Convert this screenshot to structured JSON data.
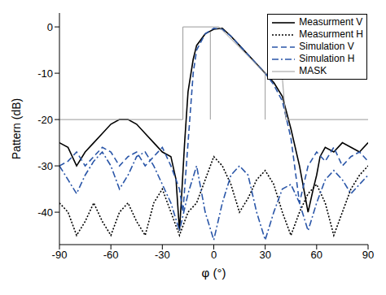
{
  "chart_data": {
    "type": "line",
    "x_label": "φ (°)",
    "y_label": "Pattern (dB)",
    "xlim": [
      -90,
      90
    ],
    "xticks": [
      -90,
      -60,
      -30,
      0,
      30,
      60,
      90
    ],
    "ylim": [
      -47,
      3
    ],
    "yticks": [
      -40,
      -30,
      -20,
      -10,
      0
    ],
    "legend": "upper right",
    "series": [
      {
        "name": "Measurment V",
        "color": "#000000",
        "line_style": "solid",
        "x": [
          -90,
          -85,
          -80,
          -75,
          -70,
          -65,
          -60,
          -55,
          -50,
          -45,
          -40,
          -35,
          -30,
          -25,
          -22,
          -20,
          -19,
          -17,
          -15,
          -12,
          -10,
          -5,
          0,
          5,
          10,
          15,
          20,
          25,
          30,
          35,
          40,
          45,
          50,
          55,
          58,
          60,
          62,
          65,
          70,
          75,
          80,
          85,
          90
        ],
        "values": [
          -25,
          -26,
          -30,
          -27,
          -25,
          -23,
          -21,
          -20,
          -20,
          -21,
          -23,
          -25,
          -27,
          -28,
          -33,
          -44,
          -38,
          -25,
          -14,
          -7,
          -4,
          -1.5,
          -0.5,
          -0.3,
          -2,
          -4,
          -6,
          -8,
          -10,
          -12,
          -15,
          -22,
          -30,
          -40,
          -35,
          -32,
          -28,
          -26,
          -27,
          -25,
          -26,
          -27,
          -25
        ]
      },
      {
        "name": "Measurment H",
        "color": "#000000",
        "line_style": "dotted",
        "x": [
          -90,
          -85,
          -80,
          -75,
          -70,
          -65,
          -60,
          -55,
          -50,
          -45,
          -40,
          -35,
          -30,
          -25,
          -20,
          -15,
          -10,
          -5,
          0,
          5,
          10,
          15,
          20,
          25,
          30,
          35,
          40,
          45,
          50,
          55,
          60,
          65,
          70,
          75,
          80,
          85,
          90
        ],
        "values": [
          -38,
          -40,
          -45,
          -42,
          -38,
          -42,
          -45,
          -40,
          -38,
          -42,
          -45,
          -38,
          -35,
          -40,
          -45,
          -40,
          -38,
          -33,
          -28,
          -30,
          -34,
          -40,
          -37,
          -33,
          -31,
          -34,
          -40,
          -45,
          -40,
          -36,
          -34,
          -38,
          -45,
          -40,
          -35,
          -32,
          -30
        ]
      },
      {
        "name": "Simulation V",
        "color": "#2a56a8",
        "line_style": "dashed",
        "x": [
          -90,
          -85,
          -80,
          -75,
          -70,
          -65,
          -60,
          -55,
          -50,
          -45,
          -40,
          -35,
          -30,
          -25,
          -20,
          -18,
          -15,
          -12,
          -10,
          -5,
          0,
          5,
          10,
          15,
          20,
          25,
          30,
          35,
          40,
          45,
          50,
          55,
          60,
          65,
          70,
          75,
          80,
          85,
          90
        ],
        "values": [
          -30,
          -29,
          -27,
          -30,
          -28,
          -26,
          -27,
          -30,
          -28,
          -27,
          -30,
          -28,
          -26,
          -30,
          -35,
          -40,
          -25,
          -10,
          -5,
          -1.5,
          -0.3,
          -0.5,
          -2,
          -4,
          -6,
          -8,
          -10,
          -12.5,
          -16,
          -24,
          -38,
          -30,
          -27,
          -29,
          -26,
          -30,
          -28,
          -27,
          -29
        ]
      },
      {
        "name": "Simulation H",
        "color": "#2a56a8",
        "line_style": "dashdot",
        "x": [
          -90,
          -85,
          -80,
          -75,
          -70,
          -65,
          -60,
          -55,
          -50,
          -45,
          -40,
          -35,
          -30,
          -25,
          -20,
          -15,
          -10,
          -5,
          0,
          5,
          10,
          15,
          20,
          25,
          30,
          35,
          40,
          45,
          50,
          55,
          60,
          65,
          70,
          75,
          80,
          85,
          90
        ],
        "values": [
          -30,
          -33,
          -36,
          -32,
          -29,
          -27,
          -30,
          -35,
          -32,
          -28,
          -27,
          -30,
          -34,
          -38,
          -44,
          -36,
          -30,
          -40,
          -46,
          -38,
          -32,
          -30,
          -32,
          -40,
          -46,
          -40,
          -35,
          -34,
          -38,
          -44,
          -38,
          -33,
          -31,
          -33,
          -36,
          -34,
          -32
        ]
      },
      {
        "name": "MASK",
        "color": "#999999",
        "line_style": "solid",
        "x": [
          -90,
          -18,
          -18,
          3,
          30,
          40,
          42,
          90,
          0,
          -2,
          -2,
          0,
          30,
          30
        ],
        "values": [
          -20,
          -20,
          0,
          0,
          -10,
          -11,
          -20,
          -20,
          null,
          -20,
          -1,
          null,
          -10,
          -20
        ]
      }
    ]
  }
}
